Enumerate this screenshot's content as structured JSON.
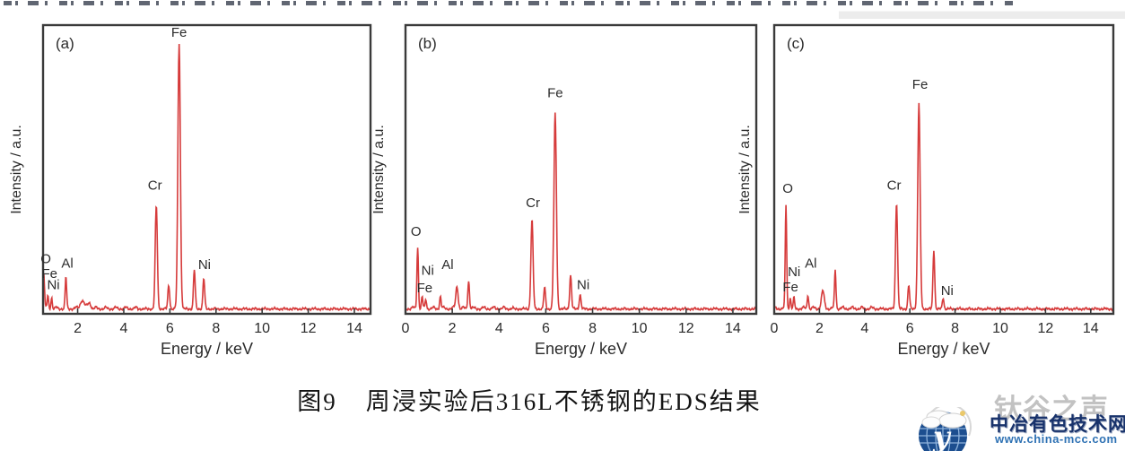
{
  "colors": {
    "spectrum_red": "#d63b3b",
    "frame": "#3a3a3a",
    "text": "#2b2b2b",
    "globe_blue": "#1c4e8f",
    "globe_grid": "#8fb3dc",
    "brand_gray": "#c2c2c2",
    "brand_navy": "#18326b",
    "url_blue": "#2f72b4"
  },
  "caption": {
    "fig_no": "图9",
    "text": "周浸实验后316L不锈钢的EDS结果"
  },
  "watermark": {
    "slogan": "钛谷之声",
    "site_name": "中冶有色技术网",
    "url": "www.china-mcc.com",
    "globe_letter": "y"
  },
  "chart_data": [
    {
      "type": "line",
      "panel": "(a)",
      "xlabel": "Energy / keV",
      "ylabel": "Intensity / a.u.",
      "x_ticks": [
        2,
        4,
        6,
        8,
        10,
        12,
        14
      ],
      "xlim": [
        0.5,
        14.7
      ],
      "ylim": [
        0,
        1
      ],
      "grid": false,
      "legend": "none",
      "line_color": "#d63b3b",
      "peaks": [
        {
          "element": "O",
          "keV": 0.53,
          "h": 0.13,
          "w": 0.045
        },
        {
          "element": "Fe-L",
          "keV": 0.71,
          "h": 0.045,
          "w": 0.04
        },
        {
          "element": "Ni-L",
          "keV": 0.87,
          "h": 0.04,
          "w": 0.04
        },
        {
          "element": "Al",
          "keV": 1.49,
          "h": 0.11,
          "w": 0.045
        },
        {
          "element": "bg",
          "keV": 2.2,
          "h": 0.03,
          "w": 0.12
        },
        {
          "element": "bg",
          "keV": 2.5,
          "h": 0.022,
          "w": 0.09
        },
        {
          "element": "Cr",
          "keV": 5.41,
          "h": 0.37,
          "w": 0.065
        },
        {
          "element": "Cr-Kb",
          "keV": 5.95,
          "h": 0.085,
          "w": 0.055
        },
        {
          "element": "Fe",
          "keV": 6.4,
          "h": 0.95,
          "w": 0.075
        },
        {
          "element": "Fe-Kb",
          "keV": 7.06,
          "h": 0.14,
          "w": 0.055
        },
        {
          "element": "Ni",
          "keV": 7.47,
          "h": 0.11,
          "w": 0.055
        }
      ],
      "labels": [
        {
          "text": "O",
          "x": 0.62,
          "y": 0.175
        },
        {
          "text": "Fe",
          "x": 0.78,
          "y": 0.125
        },
        {
          "text": "Ni",
          "x": 0.95,
          "y": 0.085
        },
        {
          "text": "Al",
          "x": 1.55,
          "y": 0.16
        },
        {
          "text": "Cr",
          "x": 5.35,
          "y": 0.43
        },
        {
          "text": "Fe",
          "x": 6.4,
          "y": 0.96
        },
        {
          "text": "Ni",
          "x": 7.5,
          "y": 0.155
        }
      ]
    },
    {
      "type": "line",
      "panel": "(b)",
      "xlabel": "Energy / keV",
      "ylabel": "Intensity / a.u.",
      "x_ticks": [
        0,
        2,
        4,
        6,
        8,
        10,
        12,
        14
      ],
      "xlim": [
        0,
        15
      ],
      "ylim": [
        0,
        1
      ],
      "grid": false,
      "legend": "none",
      "line_color": "#d63b3b",
      "peaks": [
        {
          "element": "O",
          "keV": 0.52,
          "h": 0.22,
          "w": 0.045
        },
        {
          "element": "Fe-L",
          "keV": 0.71,
          "h": 0.04,
          "w": 0.04
        },
        {
          "element": "Ni-L",
          "keV": 0.87,
          "h": 0.035,
          "w": 0.04
        },
        {
          "element": "Al",
          "keV": 1.49,
          "h": 0.045,
          "w": 0.045
        },
        {
          "element": "bg",
          "keV": 2.2,
          "h": 0.08,
          "w": 0.07
        },
        {
          "element": "bg",
          "keV": 2.7,
          "h": 0.1,
          "w": 0.05
        },
        {
          "element": "Cr",
          "keV": 5.41,
          "h": 0.32,
          "w": 0.065
        },
        {
          "element": "Cr-Kb",
          "keV": 5.95,
          "h": 0.075,
          "w": 0.055
        },
        {
          "element": "Fe",
          "keV": 6.4,
          "h": 0.7,
          "w": 0.075
        },
        {
          "element": "Fe-Kb",
          "keV": 7.06,
          "h": 0.12,
          "w": 0.055
        },
        {
          "element": "Ni",
          "keV": 7.47,
          "h": 0.05,
          "w": 0.055
        }
      ],
      "labels": [
        {
          "text": "O",
          "x": 0.45,
          "y": 0.27
        },
        {
          "text": "Ni",
          "x": 0.95,
          "y": 0.135
        },
        {
          "text": "Fe",
          "x": 0.82,
          "y": 0.075
        },
        {
          "text": "Al",
          "x": 1.8,
          "y": 0.155
        },
        {
          "text": "Cr",
          "x": 5.45,
          "y": 0.37
        },
        {
          "text": "Fe",
          "x": 6.4,
          "y": 0.75
        },
        {
          "text": "Ni",
          "x": 7.6,
          "y": 0.085
        }
      ]
    },
    {
      "type": "line",
      "panel": "(c)",
      "xlabel": "Energy / keV",
      "ylabel": "Intensity / a.u.",
      "x_ticks": [
        0,
        2,
        4,
        6,
        8,
        10,
        12,
        14
      ],
      "xlim": [
        0,
        15
      ],
      "ylim": [
        0,
        1
      ],
      "grid": false,
      "legend": "none",
      "line_color": "#d63b3b",
      "peaks": [
        {
          "element": "O",
          "keV": 0.52,
          "h": 0.37,
          "w": 0.045
        },
        {
          "element": "Fe-L",
          "keV": 0.71,
          "h": 0.04,
          "w": 0.04
        },
        {
          "element": "Ni-L",
          "keV": 0.87,
          "h": 0.035,
          "w": 0.04
        },
        {
          "element": "Al",
          "keV": 1.49,
          "h": 0.05,
          "w": 0.045
        },
        {
          "element": "bg",
          "keV": 2.15,
          "h": 0.06,
          "w": 0.09
        },
        {
          "element": "bg",
          "keV": 2.7,
          "h": 0.14,
          "w": 0.045
        },
        {
          "element": "Cr",
          "keV": 5.41,
          "h": 0.38,
          "w": 0.065
        },
        {
          "element": "Cr-Kb",
          "keV": 5.95,
          "h": 0.085,
          "w": 0.055
        },
        {
          "element": "Fe",
          "keV": 6.4,
          "h": 0.735,
          "w": 0.075
        },
        {
          "element": "Fe-Kb",
          "keV": 7.06,
          "h": 0.21,
          "w": 0.055
        },
        {
          "element": "Ni",
          "keV": 7.47,
          "h": 0.04,
          "w": 0.05
        }
      ],
      "labels": [
        {
          "text": "O",
          "x": 0.6,
          "y": 0.42
        },
        {
          "text": "Ni",
          "x": 0.88,
          "y": 0.13
        },
        {
          "text": "Fe",
          "x": 0.72,
          "y": 0.078
        },
        {
          "text": "Al",
          "x": 1.62,
          "y": 0.16
        },
        {
          "text": "Cr",
          "x": 5.3,
          "y": 0.43
        },
        {
          "text": "Fe",
          "x": 6.45,
          "y": 0.78
        },
        {
          "text": "Ni",
          "x": 7.65,
          "y": 0.065
        }
      ]
    }
  ]
}
